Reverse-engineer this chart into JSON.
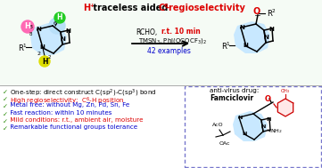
{
  "bg_color": "#ffffff",
  "top_bg": "#f5fbf5",
  "title_h": "H⁺",
  "title_mid": " traceless aided ",
  "title_c6": "C⁶",
  "title_end": "-regioselectivity",
  "rcho_black": "RCHO, ",
  "rcho_red": "r.t. 10 min",
  "tmsn3": "TMSN₃, PhI(OCOCF₃)₂",
  "examples": "42 examples",
  "bullet1_green": "√",
  "bullet1_black": " One-step: direct construct C(sp²)-C(sp³) bond",
  "bullet2": "√ High regioselectivity:  C⁶-H position",
  "bullet3": "√ Metal free: without Mg, Zn, Pd, Sn, Fe",
  "bullet4": "√ Fast reaction: within 10 minutes",
  "bullet5": "√ Mild conditions: r.t., ambient air, moisture",
  "bullet6": "√ Remarkable functional groups tolerance",
  "antivirus_label": "anti-virus drug:",
  "antivirus_name": "Famciclovir",
  "H8_color": "#ff69b4",
  "H6_color": "#22cc22",
  "H2_color": "#dddd00",
  "sp3_bg": "#b8dff8",
  "purine_bg": "#c8e8ff",
  "sep_color": "#aaaaaa",
  "dash_color": "#7777cc",
  "red": "#dd0000",
  "blue": "#0000cc",
  "green": "#228800",
  "black": "#000000",
  "toluoyl_red": "#cc0000"
}
